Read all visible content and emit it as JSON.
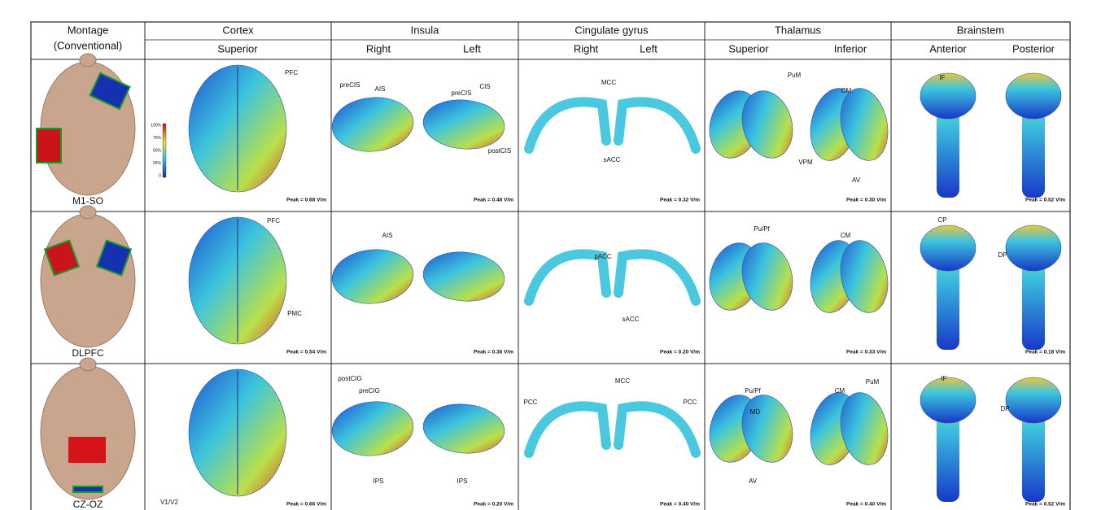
{
  "header": {
    "montage": [
      "Montage",
      "(Conventional)"
    ],
    "regions": [
      {
        "name": "Cortex",
        "views": [
          "Superior"
        ]
      },
      {
        "name": "Insula",
        "views": [
          "Right",
          "Left"
        ]
      },
      {
        "name": "Cingulate gyrus",
        "views": [
          "Right",
          "Left"
        ]
      },
      {
        "name": "Thalamus",
        "views": [
          "Superior",
          "Inferior"
        ]
      },
      {
        "name": "Brainstem",
        "views": [
          "Anterior",
          "Posterior"
        ]
      }
    ]
  },
  "colorbar": [
    "100%",
    "75%",
    "50%",
    "25%",
    "0"
  ],
  "rows": [
    {
      "montage": "M1-SO",
      "cells": [
        {
          "labels": [
            "PFC"
          ],
          "peak": "Peak = 0.68 V/m"
        },
        {
          "labels": [
            "preCIS",
            "AIS",
            "preCIS",
            "CIS",
            "postCIS"
          ],
          "peak": "Peak = 0.48 V/m"
        },
        {
          "labels": [
            "MCC",
            "sACC"
          ],
          "peak": "Peak = 0.32 V/m"
        },
        {
          "labels": [
            "PuM",
            "CM",
            "VPM",
            "AV"
          ],
          "peak": "Peak = 0.30 V/m"
        },
        {
          "labels": [
            "IF"
          ],
          "peak": "Peak = 0.52 V/m"
        }
      ]
    },
    {
      "montage": "DLPFC",
      "cells": [
        {
          "labels": [
            "PFC",
            "PMC"
          ],
          "peak": "Peak = 0.54 V/m"
        },
        {
          "labels": [
            "AIS"
          ],
          "peak": "Peak = 0.36 V/m"
        },
        {
          "labels": [
            "pACC",
            "sACC"
          ],
          "peak": "Peak = 0.20 V/m"
        },
        {
          "labels": [
            "Pu/Pf",
            "CM"
          ],
          "peak": "Peak = 0.33 V/m"
        },
        {
          "labels": [
            "CP",
            "DP"
          ],
          "peak": "Peak = 0.18 V/m"
        }
      ]
    },
    {
      "montage": "CZ-OZ",
      "cells": [
        {
          "labels": [
            "V1/V2"
          ],
          "peak": "Peak = 0.66 V/m"
        },
        {
          "labels": [
            "postCIG",
            "preCIG",
            "IPS",
            "IPS"
          ],
          "peak": "Peak = 0.20 V/m"
        },
        {
          "labels": [
            "PCC",
            "MCC",
            "PCC"
          ],
          "peak": "Peak = 0.40 V/m"
        },
        {
          "labels": [
            "Pu/Pf",
            "MD",
            "AV",
            "CM",
            "PuM"
          ],
          "peak": "Peak = 0.40 V/m"
        },
        {
          "labels": [
            "IF",
            "DP"
          ],
          "peak": "Peak = 0.52 V/m"
        }
      ]
    }
  ]
}
